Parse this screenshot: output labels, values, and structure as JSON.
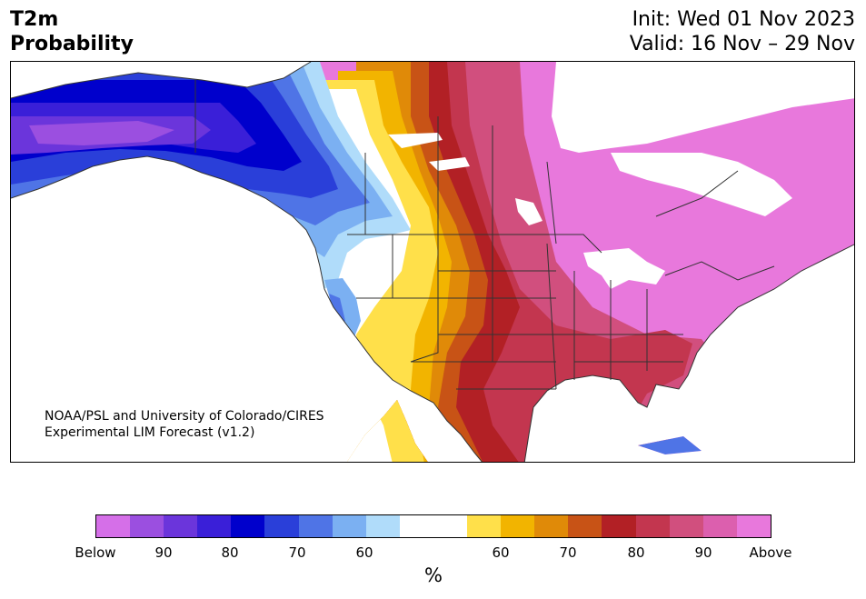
{
  "title": {
    "left_line1": "T2m",
    "left_line2": "Probability",
    "init": "Init: Wed 01 Nov 2023",
    "valid": "Valid: 16 Nov – 29 Nov"
  },
  "credit": {
    "line1": "NOAA/PSL and University of Colorado/CIRES",
    "line2": "Experimental LIM Forecast (v1.2)"
  },
  "colorbar": {
    "colors": [
      "#d56fe8",
      "#9b4fe0",
      "#6b35db",
      "#3a1fd8",
      "#0000cc",
      "#2a3fd9",
      "#4f74e6",
      "#7bb0f2",
      "#b0dcfa",
      "#ffffff",
      "#ffffff",
      "#ffe04a",
      "#f2b400",
      "#e08a08",
      "#c85316",
      "#b22025",
      "#c3364f",
      "#d14f7e",
      "#dc5fae",
      "#e878dc"
    ],
    "tick_labels": [
      "Below",
      "90",
      "80",
      "70",
      "60",
      "60",
      "70",
      "80",
      "90",
      "Above"
    ],
    "unit": "%"
  },
  "map": {
    "region": "North America",
    "variable": "2-m temperature probability",
    "colors": {
      "below_strong": "#0000cc",
      "below": "#6b35db",
      "neutral": "#ffffff",
      "above": "#dc5fae",
      "above_strong": "#b22025"
    }
  }
}
